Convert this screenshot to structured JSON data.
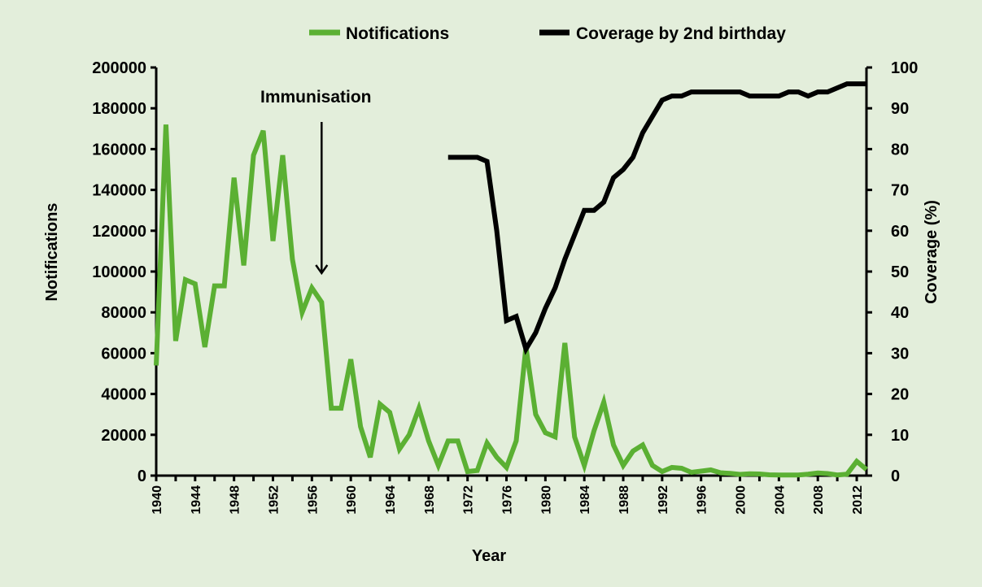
{
  "chart_data": {
    "type": "line",
    "title": "",
    "xlabel": "Year",
    "ylabel": "Notifications",
    "y2label": "Coverage (%)",
    "xlim": [
      1940,
      2013
    ],
    "ylim": [
      0,
      200000
    ],
    "y2lim": [
      0,
      100
    ],
    "x_ticks": [
      "1940",
      "1944",
      "1948",
      "1952",
      "1956",
      "1960",
      "1964",
      "1968",
      "1972",
      "1976",
      "1980",
      "1984",
      "1988",
      "1992",
      "1996",
      "2000",
      "2004",
      "2008",
      "2012"
    ],
    "y_ticks": [
      "0",
      "20000",
      "40000",
      "60000",
      "80000",
      "100000",
      "120000",
      "140000",
      "160000",
      "180000",
      "200000"
    ],
    "y2_ticks": [
      "0",
      "10",
      "20",
      "30",
      "40",
      "50",
      "60",
      "70",
      "80",
      "90",
      "100"
    ],
    "legend_position": "top",
    "annotation": {
      "text": "Immunisation",
      "year": 1957
    },
    "series": [
      {
        "name": "Notifications",
        "color": "#5bb033",
        "axis": "left",
        "x": [
          1940,
          1941,
          1942,
          1943,
          1944,
          1945,
          1946,
          1947,
          1948,
          1949,
          1950,
          1951,
          1952,
          1953,
          1954,
          1955,
          1956,
          1957,
          1958,
          1959,
          1960,
          1961,
          1962,
          1963,
          1964,
          1965,
          1966,
          1967,
          1968,
          1969,
          1970,
          1971,
          1972,
          1973,
          1974,
          1975,
          1976,
          1977,
          1978,
          1979,
          1980,
          1981,
          1982,
          1983,
          1984,
          1985,
          1986,
          1987,
          1988,
          1989,
          1990,
          1991,
          1992,
          1993,
          1994,
          1995,
          1996,
          1997,
          1998,
          1999,
          2000,
          2001,
          2002,
          2003,
          2004,
          2005,
          2006,
          2007,
          2008,
          2009,
          2010,
          2011,
          2012,
          2013
        ],
        "values": [
          54000,
          172000,
          66000,
          96000,
          94000,
          63000,
          93000,
          93000,
          146000,
          103000,
          157000,
          169000,
          115000,
          157000,
          106000,
          80000,
          92000,
          85000,
          33000,
          33000,
          57000,
          24000,
          9000,
          35000,
          31000,
          13000,
          20000,
          33000,
          17000,
          5000,
          17000,
          17000,
          2000,
          2500,
          16000,
          9000,
          4000,
          17000,
          63000,
          30000,
          21000,
          19000,
          65000,
          19000,
          5000,
          22000,
          36000,
          15000,
          5000,
          12000,
          15000,
          5000,
          2000,
          4000,
          3600,
          1600,
          2200,
          2800,
          1400,
          1100,
          600,
          900,
          800,
          400,
          300,
          300,
          300,
          700,
          1300,
          1000,
          300,
          700,
          7000,
          3000
        ]
      },
      {
        "name": "Coverage by 2nd birthday",
        "color": "#000000",
        "axis": "right",
        "x": [
          1970,
          1971,
          1972,
          1973,
          1974,
          1975,
          1976,
          1977,
          1978,
          1979,
          1980,
          1981,
          1982,
          1983,
          1984,
          1985,
          1986,
          1987,
          1988,
          1989,
          1990,
          1991,
          1992,
          1993,
          1994,
          1995,
          1996,
          1997,
          1998,
          1999,
          2000,
          2001,
          2002,
          2003,
          2004,
          2005,
          2006,
          2007,
          2008,
          2009,
          2010,
          2011,
          2012,
          2013
        ],
        "values": [
          78,
          78,
          78,
          78,
          77,
          60,
          38,
          39,
          31,
          35,
          41,
          46,
          53,
          59,
          65,
          65,
          67,
          73,
          75,
          78,
          84,
          88,
          92,
          93,
          93,
          94,
          94,
          94,
          94,
          94,
          94,
          93,
          93,
          93,
          93,
          94,
          94,
          93,
          94,
          94,
          95,
          96,
          96,
          96
        ]
      }
    ]
  }
}
